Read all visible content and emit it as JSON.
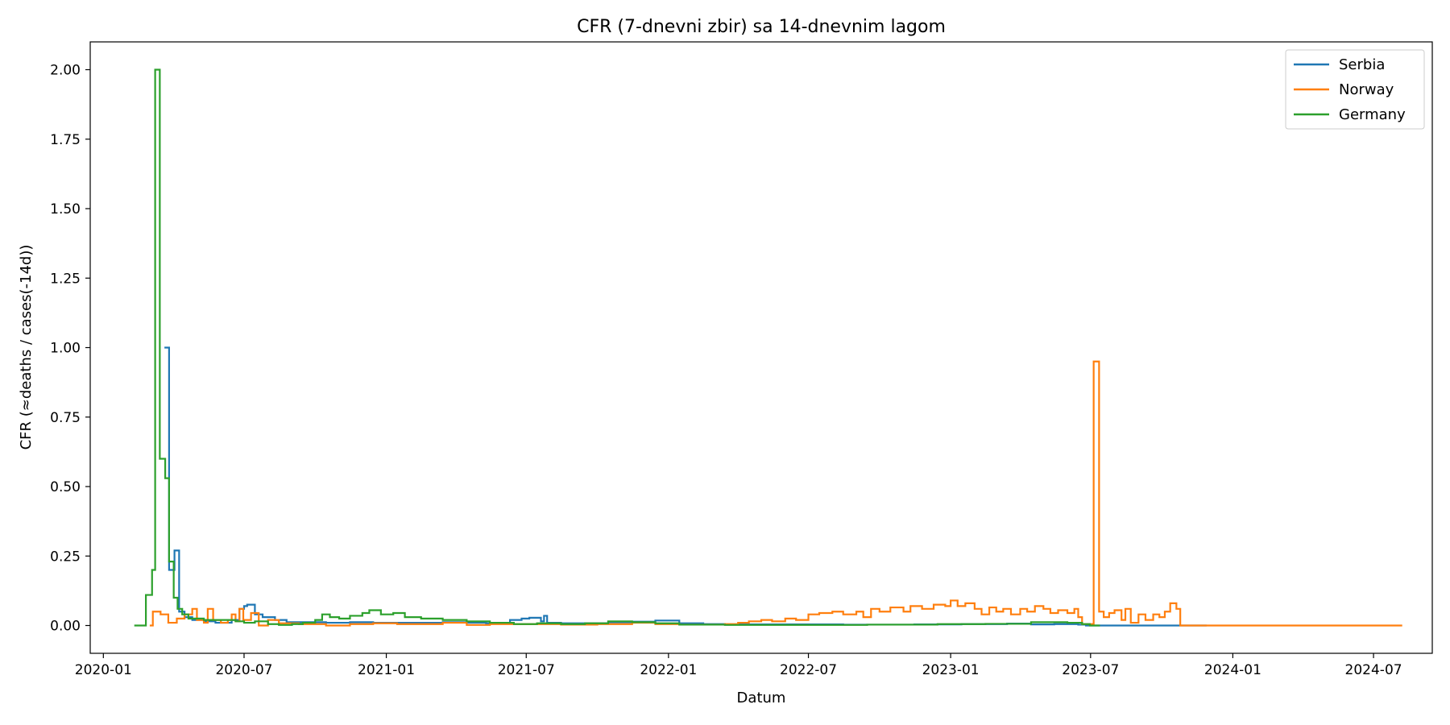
{
  "chart_data": {
    "type": "line",
    "title": "CFR (7-dnevni zbir) sa 14-dnevnim lagom",
    "xlabel": "Datum",
    "ylabel": "CFR (≈deaths / cases(-14d))",
    "xlim": [
      "2019-12-15",
      "2024-09-15"
    ],
    "ylim": [
      -0.1,
      2.1
    ],
    "x_ticks": [
      "2020-01-01",
      "2020-07-01",
      "2021-01-01",
      "2021-07-01",
      "2022-01-01",
      "2022-07-01",
      "2023-01-01",
      "2023-07-01",
      "2024-01-01",
      "2024-07-01"
    ],
    "x_tick_labels": [
      "2020-01",
      "2020-07",
      "2021-01",
      "2021-07",
      "2022-01",
      "2022-07",
      "2023-01",
      "2023-07",
      "2024-01",
      "2024-07"
    ],
    "y_ticks": [
      0,
      0.25,
      0.5,
      0.75,
      1.0,
      1.25,
      1.5,
      1.75,
      2.0
    ],
    "y_tick_labels": [
      "0.00",
      "0.25",
      "0.50",
      "0.75",
      "1.00",
      "1.25",
      "1.50",
      "1.75",
      "2.00"
    ],
    "grid": false,
    "legend_position": "top-right",
    "step": true,
    "series": [
      {
        "name": "Serbia",
        "color": "#1f77b4",
        "points": [
          [
            "2020-03-20",
            1.0
          ],
          [
            "2020-03-26",
            0.2
          ],
          [
            "2020-04-02",
            0.27
          ],
          [
            "2020-04-08",
            0.05
          ],
          [
            "2020-04-15",
            0.03
          ],
          [
            "2020-04-25",
            0.02
          ],
          [
            "2020-05-10",
            0.015
          ],
          [
            "2020-05-25",
            0.01
          ],
          [
            "2020-06-15",
            0.02
          ],
          [
            "2020-06-25",
            0.06
          ],
          [
            "2020-07-01",
            0.07
          ],
          [
            "2020-07-05",
            0.075
          ],
          [
            "2020-07-15",
            0.04
          ],
          [
            "2020-07-25",
            0.03
          ],
          [
            "2020-08-10",
            0.02
          ],
          [
            "2020-08-25",
            0.012
          ],
          [
            "2020-09-15",
            0.012
          ],
          [
            "2020-10-15",
            0.01
          ],
          [
            "2020-11-15",
            0.012
          ],
          [
            "2020-12-15",
            0.01
          ],
          [
            "2021-01-15",
            0.01
          ],
          [
            "2021-02-15",
            0.01
          ],
          [
            "2021-03-15",
            0.012
          ],
          [
            "2021-04-15",
            0.01
          ],
          [
            "2021-05-10",
            0.008
          ],
          [
            "2021-05-25",
            0.01
          ],
          [
            "2021-06-10",
            0.02
          ],
          [
            "2021-06-25",
            0.025
          ],
          [
            "2021-07-05",
            0.028
          ],
          [
            "2021-07-20",
            0.015
          ],
          [
            "2021-07-24",
            0.035
          ],
          [
            "2021-07-28",
            0.01
          ],
          [
            "2021-08-15",
            0.008
          ],
          [
            "2021-09-15",
            0.008
          ],
          [
            "2021-10-15",
            0.012
          ],
          [
            "2021-11-15",
            0.014
          ],
          [
            "2021-12-15",
            0.018
          ],
          [
            "2022-01-15",
            0.008
          ],
          [
            "2022-02-15",
            0.005
          ],
          [
            "2022-03-15",
            0.004
          ],
          [
            "2022-05-15",
            0.004
          ],
          [
            "2022-08-15",
            0.003
          ],
          [
            "2022-11-15",
            0.004
          ],
          [
            "2023-01-15",
            0.005
          ],
          [
            "2023-03-15",
            0.007
          ],
          [
            "2023-04-15",
            0.004
          ],
          [
            "2023-05-15",
            0.005
          ],
          [
            "2023-06-15",
            0.003
          ],
          [
            "2023-06-25",
            0.0
          ],
          [
            "2023-09-01",
            0.0
          ],
          [
            "2023-11-25",
            0.0
          ]
        ]
      },
      {
        "name": "Norway",
        "color": "#ff7f0e",
        "points": [
          [
            "2020-03-01",
            0.0
          ],
          [
            "2020-03-05",
            0.05
          ],
          [
            "2020-03-15",
            0.04
          ],
          [
            "2020-03-25",
            0.01
          ],
          [
            "2020-04-05",
            0.025
          ],
          [
            "2020-04-15",
            0.04
          ],
          [
            "2020-04-25",
            0.06
          ],
          [
            "2020-05-01",
            0.02
          ],
          [
            "2020-05-10",
            0.01
          ],
          [
            "2020-05-15",
            0.06
          ],
          [
            "2020-05-22",
            0.02
          ],
          [
            "2020-06-01",
            0.01
          ],
          [
            "2020-06-10",
            0.02
          ],
          [
            "2020-06-15",
            0.04
          ],
          [
            "2020-06-20",
            0.015
          ],
          [
            "2020-06-25",
            0.06
          ],
          [
            "2020-06-30",
            0.02
          ],
          [
            "2020-07-10",
            0.045
          ],
          [
            "2020-07-20",
            0.0
          ],
          [
            "2020-08-01",
            0.02
          ],
          [
            "2020-08-15",
            0.008
          ],
          [
            "2020-09-10",
            0.005
          ],
          [
            "2020-10-15",
            0.0
          ],
          [
            "2020-11-15",
            0.005
          ],
          [
            "2020-12-15",
            0.008
          ],
          [
            "2021-01-15",
            0.005
          ],
          [
            "2021-02-15",
            0.005
          ],
          [
            "2021-03-15",
            0.01
          ],
          [
            "2021-04-15",
            0.002
          ],
          [
            "2021-05-15",
            0.005
          ],
          [
            "2021-07-01",
            0.005
          ],
          [
            "2021-08-15",
            0.003
          ],
          [
            "2021-10-01",
            0.005
          ],
          [
            "2021-11-15",
            0.01
          ],
          [
            "2021-12-15",
            0.005
          ],
          [
            "2022-01-15",
            0.003
          ],
          [
            "2022-02-15",
            0.003
          ],
          [
            "2022-03-15",
            0.005
          ],
          [
            "2022-04-01",
            0.01
          ],
          [
            "2022-04-15",
            0.015
          ],
          [
            "2022-05-01",
            0.02
          ],
          [
            "2022-05-15",
            0.015
          ],
          [
            "2022-06-01",
            0.025
          ],
          [
            "2022-06-15",
            0.02
          ],
          [
            "2022-07-01",
            0.04
          ],
          [
            "2022-07-15",
            0.045
          ],
          [
            "2022-08-01",
            0.05
          ],
          [
            "2022-08-15",
            0.04
          ],
          [
            "2022-09-01",
            0.05
          ],
          [
            "2022-09-10",
            0.03
          ],
          [
            "2022-09-20",
            0.06
          ],
          [
            "2022-10-01",
            0.05
          ],
          [
            "2022-10-15",
            0.065
          ],
          [
            "2022-11-01",
            0.05
          ],
          [
            "2022-11-10",
            0.07
          ],
          [
            "2022-11-25",
            0.06
          ],
          [
            "2022-12-10",
            0.075
          ],
          [
            "2022-12-25",
            0.07
          ],
          [
            "2023-01-01",
            0.09
          ],
          [
            "2023-01-10",
            0.07
          ],
          [
            "2023-01-20",
            0.08
          ],
          [
            "2023-02-01",
            0.06
          ],
          [
            "2023-02-10",
            0.04
          ],
          [
            "2023-02-20",
            0.065
          ],
          [
            "2023-03-01",
            0.05
          ],
          [
            "2023-03-10",
            0.06
          ],
          [
            "2023-03-20",
            0.04
          ],
          [
            "2023-04-01",
            0.06
          ],
          [
            "2023-04-10",
            0.05
          ],
          [
            "2023-04-20",
            0.07
          ],
          [
            "2023-05-01",
            0.06
          ],
          [
            "2023-05-10",
            0.045
          ],
          [
            "2023-05-20",
            0.055
          ],
          [
            "2023-06-01",
            0.045
          ],
          [
            "2023-06-10",
            0.06
          ],
          [
            "2023-06-15",
            0.03
          ],
          [
            "2023-06-20",
            0.005
          ],
          [
            "2023-07-05",
            0.95
          ],
          [
            "2023-07-12",
            0.05
          ],
          [
            "2023-07-18",
            0.03
          ],
          [
            "2023-07-25",
            0.045
          ],
          [
            "2023-08-01",
            0.055
          ],
          [
            "2023-08-10",
            0.02
          ],
          [
            "2023-08-15",
            0.06
          ],
          [
            "2023-08-22",
            0.01
          ],
          [
            "2023-09-01",
            0.04
          ],
          [
            "2023-09-10",
            0.02
          ],
          [
            "2023-09-20",
            0.04
          ],
          [
            "2023-09-28",
            0.03
          ],
          [
            "2023-10-05",
            0.05
          ],
          [
            "2023-10-12",
            0.08
          ],
          [
            "2023-10-20",
            0.06
          ],
          [
            "2023-10-25",
            0.0
          ],
          [
            "2024-08-04",
            0.0
          ]
        ]
      },
      {
        "name": "Germany",
        "color": "#2ca02c",
        "points": [
          [
            "2020-02-10",
            0.0
          ],
          [
            "2020-02-25",
            0.11
          ],
          [
            "2020-03-04",
            0.2
          ],
          [
            "2020-03-08",
            2.0
          ],
          [
            "2020-03-14",
            0.6
          ],
          [
            "2020-03-21",
            0.53
          ],
          [
            "2020-03-26",
            0.23
          ],
          [
            "2020-04-01",
            0.1
          ],
          [
            "2020-04-06",
            0.06
          ],
          [
            "2020-04-12",
            0.04
          ],
          [
            "2020-04-20",
            0.025
          ],
          [
            "2020-05-10",
            0.02
          ],
          [
            "2020-06-01",
            0.02
          ],
          [
            "2020-06-20",
            0.015
          ],
          [
            "2020-07-01",
            0.01
          ],
          [
            "2020-07-15",
            0.015
          ],
          [
            "2020-08-01",
            0.005
          ],
          [
            "2020-08-15",
            0.002
          ],
          [
            "2020-09-01",
            0.005
          ],
          [
            "2020-09-15",
            0.01
          ],
          [
            "2020-10-01",
            0.02
          ],
          [
            "2020-10-10",
            0.04
          ],
          [
            "2020-10-20",
            0.03
          ],
          [
            "2020-11-01",
            0.025
          ],
          [
            "2020-11-15",
            0.035
          ],
          [
            "2020-12-01",
            0.045
          ],
          [
            "2020-12-10",
            0.055
          ],
          [
            "2020-12-25",
            0.04
          ],
          [
            "2021-01-10",
            0.045
          ],
          [
            "2021-01-25",
            0.03
          ],
          [
            "2021-02-15",
            0.025
          ],
          [
            "2021-03-15",
            0.02
          ],
          [
            "2021-04-15",
            0.015
          ],
          [
            "2021-05-15",
            0.01
          ],
          [
            "2021-06-15",
            0.005
          ],
          [
            "2021-07-15",
            0.008
          ],
          [
            "2021-08-15",
            0.005
          ],
          [
            "2021-09-15",
            0.008
          ],
          [
            "2021-10-15",
            0.015
          ],
          [
            "2021-11-15",
            0.012
          ],
          [
            "2021-12-15",
            0.008
          ],
          [
            "2022-01-15",
            0.003
          ],
          [
            "2022-03-15",
            0.002
          ],
          [
            "2022-06-15",
            0.002
          ],
          [
            "2022-09-15",
            0.003
          ],
          [
            "2022-12-15",
            0.005
          ],
          [
            "2023-02-15",
            0.006
          ],
          [
            "2023-04-15",
            0.012
          ],
          [
            "2023-06-01",
            0.01
          ],
          [
            "2023-06-20",
            0.005
          ],
          [
            "2023-06-30",
            0.0
          ],
          [
            "2023-07-10",
            0.0
          ]
        ]
      }
    ]
  }
}
